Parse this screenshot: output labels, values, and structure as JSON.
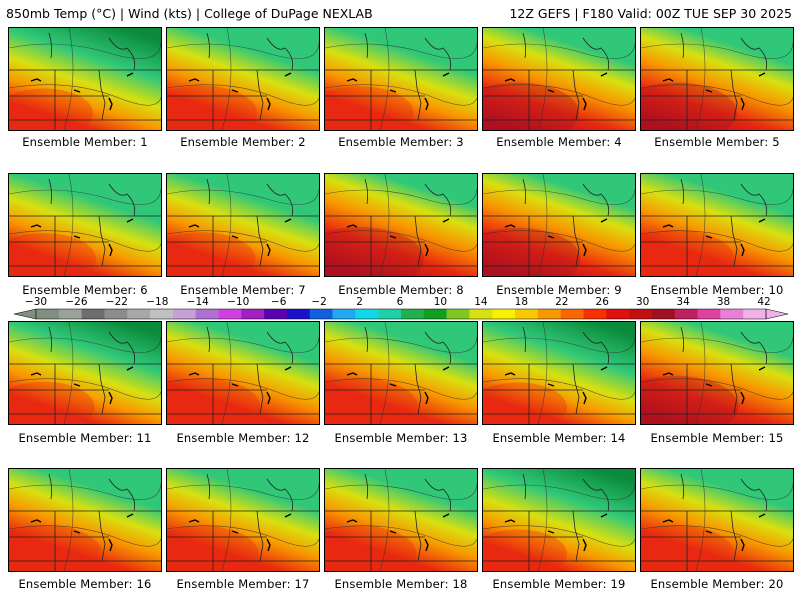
{
  "header": {
    "left": "850mb Temp (°C) | Wind (kts) | College of DuPage NEXLAB",
    "right": "12Z GEFS | F180 Valid: 00Z TUE SEP 30 2025"
  },
  "members": [
    {
      "label": "Ensemble Member: 1",
      "warmth": 0.3
    },
    {
      "label": "Ensemble Member: 2",
      "warmth": 0.5
    },
    {
      "label": "Ensemble Member: 3",
      "warmth": 0.45
    },
    {
      "label": "Ensemble Member: 4",
      "warmth": 0.7
    },
    {
      "label": "Ensemble Member: 5",
      "warmth": 0.7
    },
    {
      "label": "Ensemble Member: 6",
      "warmth": 0.4
    },
    {
      "label": "Ensemble Member: 7",
      "warmth": 0.45
    },
    {
      "label": "Ensemble Member: 8",
      "warmth": 0.8
    },
    {
      "label": "Ensemble Member: 9",
      "warmth": 0.75
    },
    {
      "label": "Ensemble Member: 10",
      "warmth": 0.6
    },
    {
      "label": "Ensemble Member: 11",
      "warmth": 0.35
    },
    {
      "label": "Ensemble Member: 12",
      "warmth": 0.6
    },
    {
      "label": "Ensemble Member: 13",
      "warmth": 0.6
    },
    {
      "label": "Ensemble Member: 14",
      "warmth": 0.3
    },
    {
      "label": "Ensemble Member: 15",
      "warmth": 0.75
    },
    {
      "label": "Ensemble Member: 16",
      "warmth": 0.6
    },
    {
      "label": "Ensemble Member: 17",
      "warmth": 0.55
    },
    {
      "label": "Ensemble Member: 18",
      "warmth": 0.55
    },
    {
      "label": "Ensemble Member: 19",
      "warmth": 0.3
    },
    {
      "label": "Ensemble Member: 20",
      "warmth": 0.6
    }
  ],
  "colorbar": {
    "ticks": [
      "-30",
      "-26",
      "-22",
      "-18",
      "-14",
      "-10",
      "-6",
      "-2",
      "2",
      "6",
      "10",
      "14",
      "18",
      "22",
      "26",
      "30",
      "34",
      "38",
      "42"
    ],
    "colors": [
      "#7f8f80",
      "#9aa39a",
      "#6e6e6e",
      "#8c8c8c",
      "#a8a8a8",
      "#c0c0c0",
      "#c8a0d8",
      "#b070d0",
      "#d040e0",
      "#a020c0",
      "#5a00b0",
      "#1c10c8",
      "#1060e0",
      "#20a8f0",
      "#10d8e8",
      "#20d0a8",
      "#20b050",
      "#10a020",
      "#80c820",
      "#d8e010",
      "#f8f000",
      "#f8c800",
      "#f89800",
      "#f86800",
      "#f83000",
      "#e01010",
      "#c01010",
      "#a01020",
      "#c02060",
      "#e040a0",
      "#e880d8",
      "#f0b0e8"
    ]
  },
  "colors": {
    "cold": "#0a8a3a",
    "cool": "#30c878",
    "mild": "#d8e010",
    "warm": "#f89800",
    "hot": "#e82810",
    "hottest": "#b01020"
  }
}
